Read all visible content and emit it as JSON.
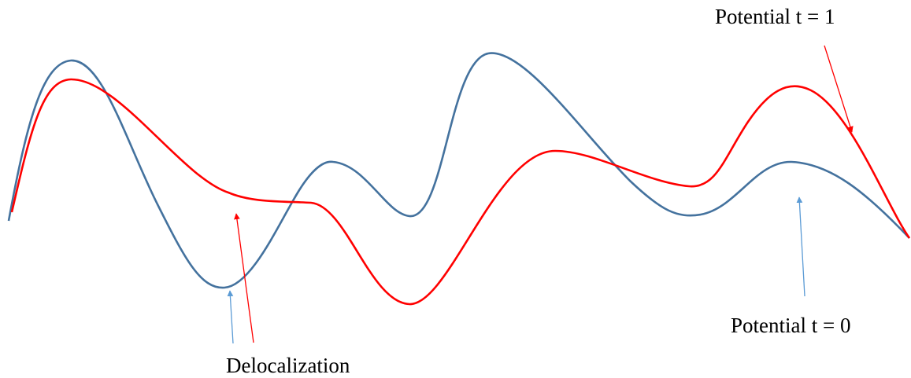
{
  "labels": {
    "potential_t1": "Potential t = 1",
    "potential_t0": "Potential t = 0",
    "delocalization": "Delocalization"
  },
  "colors": {
    "potential_t0_curve": "#44729e",
    "potential_t1_curve": "#ff0000",
    "potential_t0_arrow": "#5b9bd5",
    "potential_t1_arrow": "#ff0000",
    "text": "#000000",
    "background": "#ffffff"
  }
}
